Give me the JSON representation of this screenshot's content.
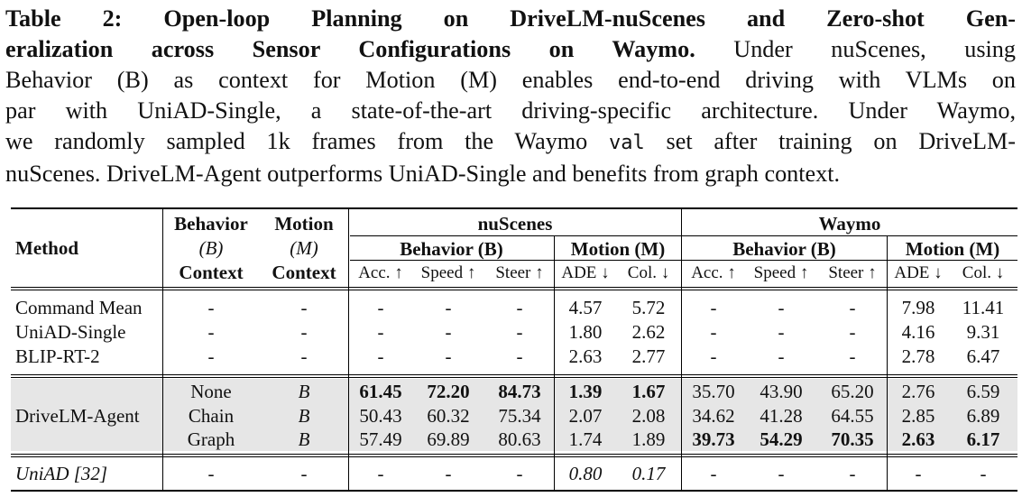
{
  "caption": {
    "label": "Table 2: Open-loop Planning on DriveLM-nuScenes and Zero-shot Generalization across Sensor Configurations on Waymo.",
    "line1_bold": "Table 2: Open-loop Planning on DriveLM-nuScenes and Zero-shot Gen-",
    "line2_bold": "eralization across Sensor Configurations on Waymo.",
    "line2_rest": " Under nuScenes, using",
    "line3": "Behavior (B) as context for Motion (M) enables end-to-end driving with VLMs on",
    "line4": "par with UniAD-Single, a state-of-the-art driving-specific architecture. Under Waymo,",
    "line5_a": "we randomly sampled 1k frames from the Waymo ",
    "line5_mono": "val",
    "line5_b": " set after training on DriveLM-",
    "line6": "nuScenes. DriveLM-Agent outperforms UniAD-Single and benefits from graph context."
  },
  "header": {
    "method": "Method",
    "behavior_ctx": [
      "Behavior",
      "(B)",
      "Context"
    ],
    "motion_ctx": [
      "Motion",
      "(M)",
      "Context"
    ],
    "nuscenes": "nuScenes",
    "waymo": "Waymo",
    "behavior_group": "Behavior (B)",
    "motion_group": "Motion (M)",
    "acc": "Acc. ↑",
    "speed": "Speed ↑",
    "steer": "Steer ↑",
    "ade": "ADE ↓",
    "col": "Col. ↓"
  },
  "rows": {
    "cmd": [
      "Command Mean",
      "-",
      "-",
      "-",
      "-",
      "-",
      "4.57",
      "5.72",
      "-",
      "-",
      "-",
      "7.98",
      "11.41"
    ],
    "uniad_single": [
      "UniAD-Single",
      "-",
      "-",
      "-",
      "-",
      "-",
      "1.80",
      "2.62",
      "-",
      "-",
      "-",
      "4.16",
      "9.31"
    ],
    "blip": [
      "BLIP-RT-2",
      "-",
      "-",
      "-",
      "-",
      "-",
      "2.63",
      "2.77",
      "-",
      "-",
      "-",
      "2.78",
      "6.47"
    ],
    "agent_label": "DriveLM-Agent",
    "none": [
      "None",
      "B",
      "61.45",
      "72.20",
      "84.73",
      "1.39",
      "1.67",
      "35.70",
      "43.90",
      "65.20",
      "2.76",
      "6.59"
    ],
    "chain": [
      "Chain",
      "B",
      "50.43",
      "60.32",
      "75.34",
      "2.07",
      "2.08",
      "34.62",
      "41.28",
      "64.55",
      "2.85",
      "6.89"
    ],
    "graph": [
      "Graph",
      "B",
      "57.49",
      "69.89",
      "80.63",
      "1.74",
      "1.89",
      "39.73",
      "54.29",
      "70.35",
      "2.63",
      "6.17"
    ],
    "uniad": [
      "UniAD [32]",
      "-",
      "-",
      "-",
      "-",
      "-",
      "0.80",
      "0.17",
      "-",
      "-",
      "-",
      "-",
      "-"
    ]
  }
}
